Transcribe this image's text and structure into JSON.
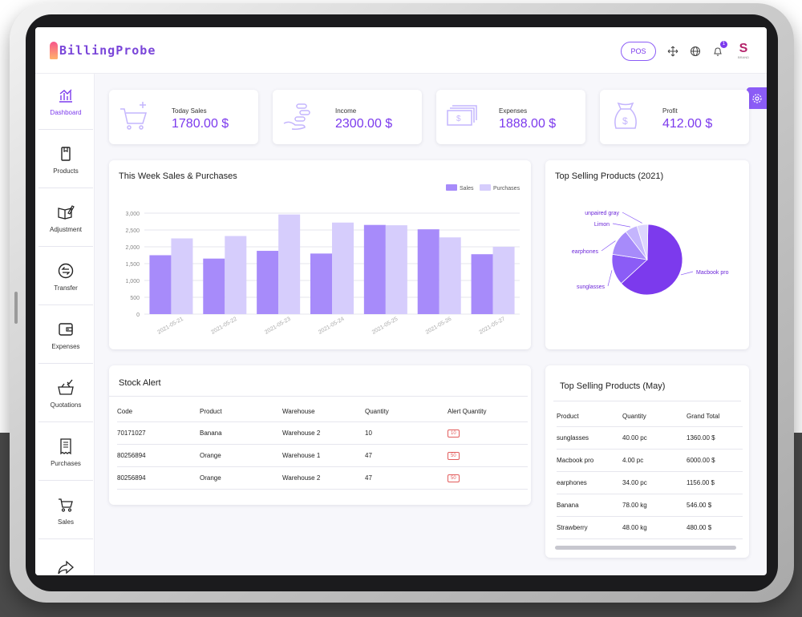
{
  "brand": {
    "logo_text": "BillingProbe",
    "accent": "#7c3aed"
  },
  "header": {
    "pos_label": "POS",
    "notification_count": "1",
    "avatar_caption": "S",
    "avatar_sub": "BRAND"
  },
  "sidebar": {
    "items": [
      {
        "label": "Dashboard",
        "icon": "chart-icon"
      },
      {
        "label": "Products",
        "icon": "product-box-icon"
      },
      {
        "label": "Adjustment",
        "icon": "book-pencil-icon"
      },
      {
        "label": "Transfer",
        "icon": "transfer-circle-icon"
      },
      {
        "label": "Expenses",
        "icon": "wallet-icon"
      },
      {
        "label": "Quotations",
        "icon": "basket-check-icon"
      },
      {
        "label": "Purchases",
        "icon": "receipt-icon"
      },
      {
        "label": "Sales",
        "icon": "cart-icon"
      },
      {
        "label": "",
        "icon": "share-arrow-icon"
      }
    ]
  },
  "stats": [
    {
      "label": "Today Sales",
      "value": "1780.00 $",
      "icon": "cart-plus-icon"
    },
    {
      "label": "Income",
      "value": "2300.00 $",
      "icon": "coins-hand-icon"
    },
    {
      "label": "Expenses",
      "value": "1888.00 $",
      "icon": "cash-stack-icon"
    },
    {
      "label": "Profit",
      "value": "412.00 $",
      "icon": "money-bag-icon"
    }
  ],
  "weekly_chart": {
    "title": "This Week Sales & Purchases",
    "legend": [
      "Sales",
      "Purchases"
    ],
    "colors": {
      "sales": "#a78bfa",
      "purchases": "#d6cdfc"
    }
  },
  "pie_chart": {
    "title": "Top Selling Products (2021)",
    "colors": [
      "#7c3aed",
      "#8b5cf6",
      "#a78bfa",
      "#c4b5fd",
      "#ddd6fe"
    ]
  },
  "chart_data": [
    {
      "type": "bar",
      "title": "This Week Sales & Purchases",
      "categories": [
        "2021-05-21",
        "2021-05-22",
        "2021-05-23",
        "2021-05-24",
        "2021-05-25",
        "2021-05-26",
        "2021-05-27"
      ],
      "series": [
        {
          "name": "Sales",
          "values": [
            1750,
            1650,
            1880,
            1800,
            2650,
            2520,
            1780
          ]
        },
        {
          "name": "Purchases",
          "values": [
            2250,
            2320,
            2960,
            2720,
            2640,
            2280,
            2000
          ]
        }
      ],
      "yticks": [
        "0",
        "500",
        "1,000",
        "1,500",
        "2,000",
        "2,500",
        "3,000"
      ],
      "ylim": [
        0,
        3000
      ],
      "xlabel": "",
      "ylabel": "",
      "grid": true,
      "legend_position": "top-right"
    },
    {
      "type": "pie",
      "title": "Top Selling Products (2021)",
      "labels": [
        "Macbook pro",
        "sunglasses",
        "earphones",
        "Limon",
        "unpaired gray"
      ],
      "values": [
        6000,
        1360,
        1156,
        546,
        480
      ]
    }
  ],
  "stock_alert": {
    "title": "Stock Alert",
    "columns": [
      "Code",
      "Product",
      "Warehouse",
      "Quantity",
      "Alert Quantity"
    ],
    "rows": [
      [
        "70171027",
        "Banana",
        "Warehouse 2",
        "10",
        "10"
      ],
      [
        "80256894",
        "Orange",
        "Warehouse 1",
        "47",
        "50"
      ],
      [
        "80256894",
        "Orange",
        "Warehouse 2",
        "47",
        "50"
      ]
    ]
  },
  "top_may": {
    "title": "Top Selling Products (May)",
    "columns": [
      "Product",
      "Quantity",
      "Grand Total"
    ],
    "rows": [
      [
        "sunglasses",
        "40.00 pc",
        "1360.00 $"
      ],
      [
        "Macbook pro",
        "4.00 pc",
        "6000.00 $"
      ],
      [
        "earphones",
        "34.00 pc",
        "1156.00 $"
      ],
      [
        "Banana",
        "78.00 kg",
        "546.00 $"
      ],
      [
        "Strawberry",
        "48.00 kg",
        "480.00 $"
      ]
    ]
  }
}
